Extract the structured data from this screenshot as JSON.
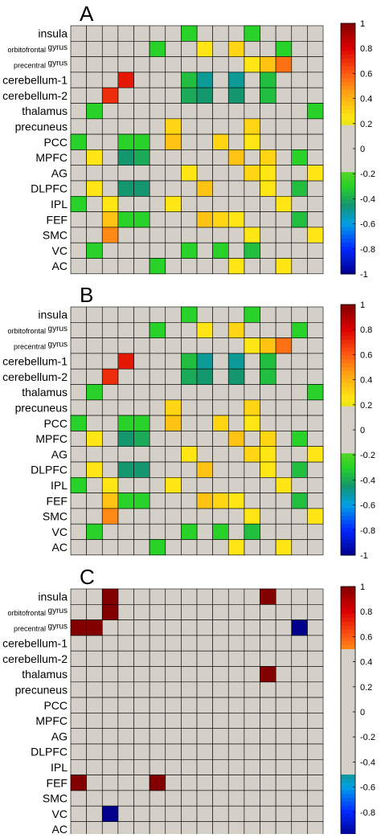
{
  "chart_data": [
    {
      "type": "heatmap",
      "panel_label": "A",
      "rows": [
        "insula",
        "orbitofrontal gyrus",
        "precentral gyrus",
        "cerebellum-1",
        "cerebellum-2",
        "thalamus",
        "precuneus",
        "PCC",
        "MPFC",
        "AG",
        "DLPFC",
        "IPL",
        "FEF",
        "SMC",
        "VC",
        "AC"
      ],
      "colorbar": {
        "ticks": [
          "1",
          "0.8",
          "0.6",
          "0.4",
          "0.2",
          "0",
          "-0.2",
          "-0.4",
          "-0.6",
          "-0.8",
          "-1"
        ],
        "blank_range": [
          -0.2,
          0.2
        ]
      },
      "cells": [
        [
          0,
          7,
          -0.3
        ],
        [
          0,
          11,
          -0.3
        ],
        [
          1,
          5,
          -0.3
        ],
        [
          1,
          8,
          0.25
        ],
        [
          1,
          10,
          0.3
        ],
        [
          1,
          13,
          -0.3
        ],
        [
          2,
          11,
          0.25
        ],
        [
          2,
          12,
          0.35
        ],
        [
          2,
          13,
          0.55
        ],
        [
          3,
          3,
          0.75
        ],
        [
          3,
          7,
          -0.35
        ],
        [
          3,
          8,
          -0.5
        ],
        [
          3,
          10,
          -0.5
        ],
        [
          3,
          12,
          -0.35
        ],
        [
          4,
          2,
          0.7
        ],
        [
          4,
          7,
          -0.4
        ],
        [
          4,
          8,
          -0.45
        ],
        [
          4,
          10,
          -0.45
        ],
        [
          4,
          12,
          -0.35
        ],
        [
          5,
          1,
          -0.3
        ],
        [
          5,
          15,
          -0.3
        ],
        [
          6,
          6,
          0.3
        ],
        [
          6,
          11,
          0.3
        ],
        [
          7,
          0,
          -0.3
        ],
        [
          7,
          3,
          -0.3
        ],
        [
          7,
          4,
          -0.3
        ],
        [
          7,
          6,
          0.35
        ],
        [
          7,
          9,
          0.3
        ],
        [
          7,
          11,
          0.25
        ],
        [
          8,
          1,
          0.25
        ],
        [
          8,
          3,
          -0.45
        ],
        [
          8,
          4,
          -0.4
        ],
        [
          8,
          10,
          0.35
        ],
        [
          8,
          12,
          0.3
        ],
        [
          8,
          14,
          -0.3
        ],
        [
          9,
          7,
          0.25
        ],
        [
          9,
          11,
          0.3
        ],
        [
          9,
          12,
          0.25
        ],
        [
          9,
          15,
          0.25
        ],
        [
          10,
          1,
          0.25
        ],
        [
          10,
          3,
          -0.45
        ],
        [
          10,
          4,
          -0.45
        ],
        [
          10,
          8,
          0.35
        ],
        [
          10,
          12,
          0.25
        ],
        [
          10,
          14,
          -0.35
        ],
        [
          11,
          0,
          -0.3
        ],
        [
          11,
          2,
          0.25
        ],
        [
          11,
          6,
          0.25
        ],
        [
          11,
          13,
          0.25
        ],
        [
          12,
          2,
          0.35
        ],
        [
          12,
          3,
          -0.3
        ],
        [
          12,
          4,
          -0.3
        ],
        [
          12,
          8,
          0.35
        ],
        [
          12,
          9,
          0.3
        ],
        [
          12,
          10,
          0.25
        ],
        [
          12,
          14,
          -0.35
        ],
        [
          13,
          2,
          0.5
        ],
        [
          13,
          11,
          0.25
        ],
        [
          13,
          15,
          0.25
        ],
        [
          14,
          1,
          -0.3
        ],
        [
          14,
          7,
          -0.3
        ],
        [
          14,
          9,
          -0.3
        ],
        [
          14,
          11,
          -0.35
        ],
        [
          15,
          5,
          -0.3
        ],
        [
          15,
          10,
          0.25
        ],
        [
          15,
          13,
          0.25
        ]
      ]
    },
    {
      "type": "heatmap",
      "panel_label": "B",
      "rows": [
        "insula",
        "orbitofrontal gyrus",
        "precentral gyrus",
        "cerebellum-1",
        "cerebellum-2",
        "thalamus",
        "precuneus",
        "PCC",
        "MPFC",
        "AG",
        "DLPFC",
        "IPL",
        "FEF",
        "SMC",
        "VC",
        "AC"
      ],
      "colorbar": {
        "ticks": [
          "1",
          "0.8",
          "0.6",
          "0.4",
          "0.2",
          "0",
          "-0.2",
          "-0.4",
          "-0.6",
          "-0.8",
          "-1"
        ],
        "blank_range": [
          -0.2,
          0.2
        ]
      },
      "cells": [
        [
          0,
          7,
          -0.3
        ],
        [
          0,
          11,
          -0.3
        ],
        [
          1,
          5,
          -0.3
        ],
        [
          1,
          8,
          0.25
        ],
        [
          1,
          10,
          0.3
        ],
        [
          1,
          14,
          -0.3
        ],
        [
          2,
          11,
          0.25
        ],
        [
          2,
          12,
          0.35
        ],
        [
          2,
          13,
          0.55
        ],
        [
          3,
          3,
          0.75
        ],
        [
          3,
          7,
          -0.35
        ],
        [
          3,
          8,
          -0.5
        ],
        [
          3,
          10,
          -0.5
        ],
        [
          3,
          12,
          -0.35
        ],
        [
          4,
          2,
          0.7
        ],
        [
          4,
          7,
          -0.4
        ],
        [
          4,
          8,
          -0.45
        ],
        [
          4,
          10,
          -0.45
        ],
        [
          4,
          12,
          -0.35
        ],
        [
          5,
          1,
          -0.3
        ],
        [
          5,
          15,
          -0.3
        ],
        [
          6,
          6,
          0.3
        ],
        [
          6,
          11,
          0.3
        ],
        [
          7,
          0,
          -0.3
        ],
        [
          7,
          3,
          -0.3
        ],
        [
          7,
          4,
          -0.3
        ],
        [
          7,
          6,
          0.35
        ],
        [
          7,
          9,
          0.3
        ],
        [
          7,
          11,
          0.25
        ],
        [
          8,
          1,
          0.25
        ],
        [
          8,
          3,
          -0.45
        ],
        [
          8,
          4,
          -0.4
        ],
        [
          8,
          10,
          0.35
        ],
        [
          8,
          12,
          0.3
        ],
        [
          8,
          14,
          -0.3
        ],
        [
          9,
          7,
          0.25
        ],
        [
          9,
          11,
          0.3
        ],
        [
          9,
          12,
          0.25
        ],
        [
          9,
          15,
          0.25
        ],
        [
          10,
          1,
          0.25
        ],
        [
          10,
          3,
          -0.45
        ],
        [
          10,
          4,
          -0.45
        ],
        [
          10,
          8,
          0.35
        ],
        [
          10,
          12,
          0.25
        ],
        [
          10,
          14,
          -0.35
        ],
        [
          11,
          0,
          -0.3
        ],
        [
          11,
          2,
          0.25
        ],
        [
          11,
          6,
          0.25
        ],
        [
          11,
          13,
          0.25
        ],
        [
          12,
          2,
          0.35
        ],
        [
          12,
          3,
          -0.3
        ],
        [
          12,
          4,
          -0.3
        ],
        [
          12,
          8,
          0.35
        ],
        [
          12,
          9,
          0.3
        ],
        [
          12,
          10,
          0.25
        ],
        [
          12,
          14,
          -0.35
        ],
        [
          13,
          2,
          0.5
        ],
        [
          13,
          11,
          0.25
        ],
        [
          13,
          15,
          0.25
        ],
        [
          14,
          1,
          -0.3
        ],
        [
          14,
          7,
          -0.3
        ],
        [
          14,
          9,
          -0.3
        ],
        [
          14,
          11,
          -0.35
        ],
        [
          15,
          5,
          -0.3
        ],
        [
          15,
          10,
          0.25
        ],
        [
          15,
          13,
          0.25
        ]
      ]
    },
    {
      "type": "heatmap",
      "panel_label": "C",
      "rows": [
        "insula",
        "orbitofrontal gyrus",
        "precentral gyrus",
        "cerebellum-1",
        "cerebellum-2",
        "thalamus",
        "precuneus",
        "PCC",
        "MPFC",
        "AG",
        "DLPFC",
        "IPL",
        "FEF",
        "SMC",
        "VC",
        "AC"
      ],
      "colorbar": {
        "ticks": [
          "1",
          "0.8",
          "0.6",
          "0.4",
          "0.2",
          "0",
          "-0.2",
          "-0.4",
          "-0.6",
          "-0.8",
          "-1"
        ],
        "blank_range": [
          -0.5,
          0.5
        ]
      },
      "cells": [
        [
          0,
          2,
          1
        ],
        [
          0,
          12,
          1
        ],
        [
          1,
          2,
          1
        ],
        [
          2,
          0,
          1
        ],
        [
          2,
          1,
          1
        ],
        [
          2,
          14,
          -1
        ],
        [
          5,
          12,
          1
        ],
        [
          12,
          0,
          1
        ],
        [
          12,
          5,
          1
        ],
        [
          14,
          2,
          -1
        ]
      ]
    }
  ]
}
